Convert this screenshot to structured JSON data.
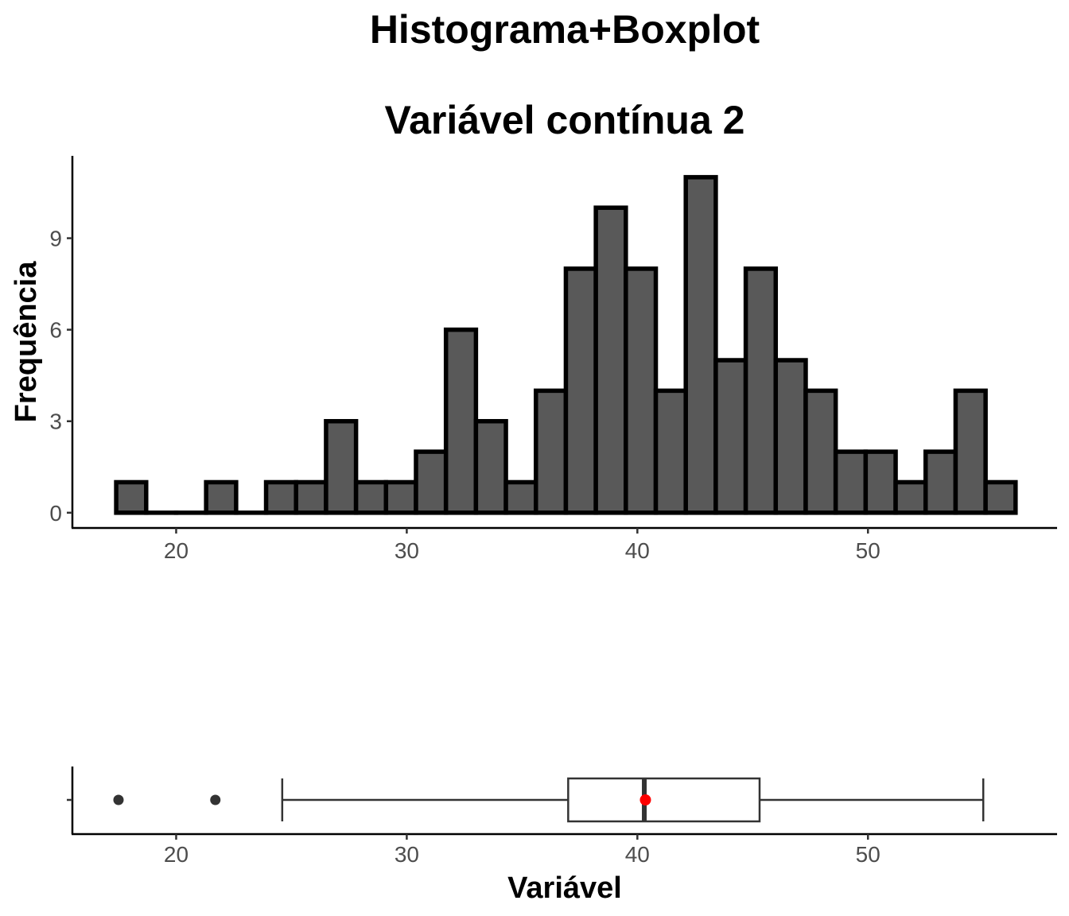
{
  "titles": {
    "line1": "Histograma+Boxplot",
    "line2": "Variável contínua 2"
  },
  "colors": {
    "bar_fill": "#595959",
    "bar_outline": "#000000",
    "mean_point": "#ff0000",
    "outlier_point": "#333333"
  },
  "chart_data": [
    {
      "type": "bar",
      "subtype": "histogram",
      "ylabel": "Frequência",
      "xlabel": "",
      "bin_width": 1.3,
      "bin_starts": [
        17.4,
        18.7,
        20.0,
        21.3,
        22.6,
        23.9,
        25.2,
        26.5,
        27.8,
        29.1,
        30.4,
        31.7,
        33.0,
        34.3,
        35.6,
        36.9,
        38.2,
        39.5,
        40.8,
        42.1,
        43.4,
        44.7,
        46.0,
        47.3,
        48.6,
        49.9,
        51.2,
        52.5,
        53.8,
        55.1
      ],
      "values": [
        1,
        0,
        0,
        1,
        0,
        1,
        1,
        3,
        1,
        1,
        2,
        6,
        3,
        1,
        4,
        8,
        10,
        8,
        4,
        11,
        5,
        8,
        5,
        4,
        2,
        2,
        1,
        2,
        4,
        1
      ],
      "xlim": [
        15.5,
        58.2
      ],
      "ylim": [
        -0.5,
        11.7
      ],
      "x_ticks": [
        20,
        30,
        40,
        50
      ],
      "y_ticks": [
        0,
        3,
        6,
        9
      ],
      "grid": false
    },
    {
      "type": "boxplot",
      "xlabel": "Variável",
      "ylabel": "",
      "min_whisker": 24.6,
      "q1": 37.0,
      "median": 40.3,
      "q3": 45.3,
      "max_whisker": 55.0,
      "mean": 40.35,
      "outliers": [
        17.5,
        21.7
      ],
      "xlim": [
        15.5,
        58.2
      ],
      "x_ticks": [
        20,
        30,
        40,
        50
      ],
      "grid": false
    }
  ]
}
